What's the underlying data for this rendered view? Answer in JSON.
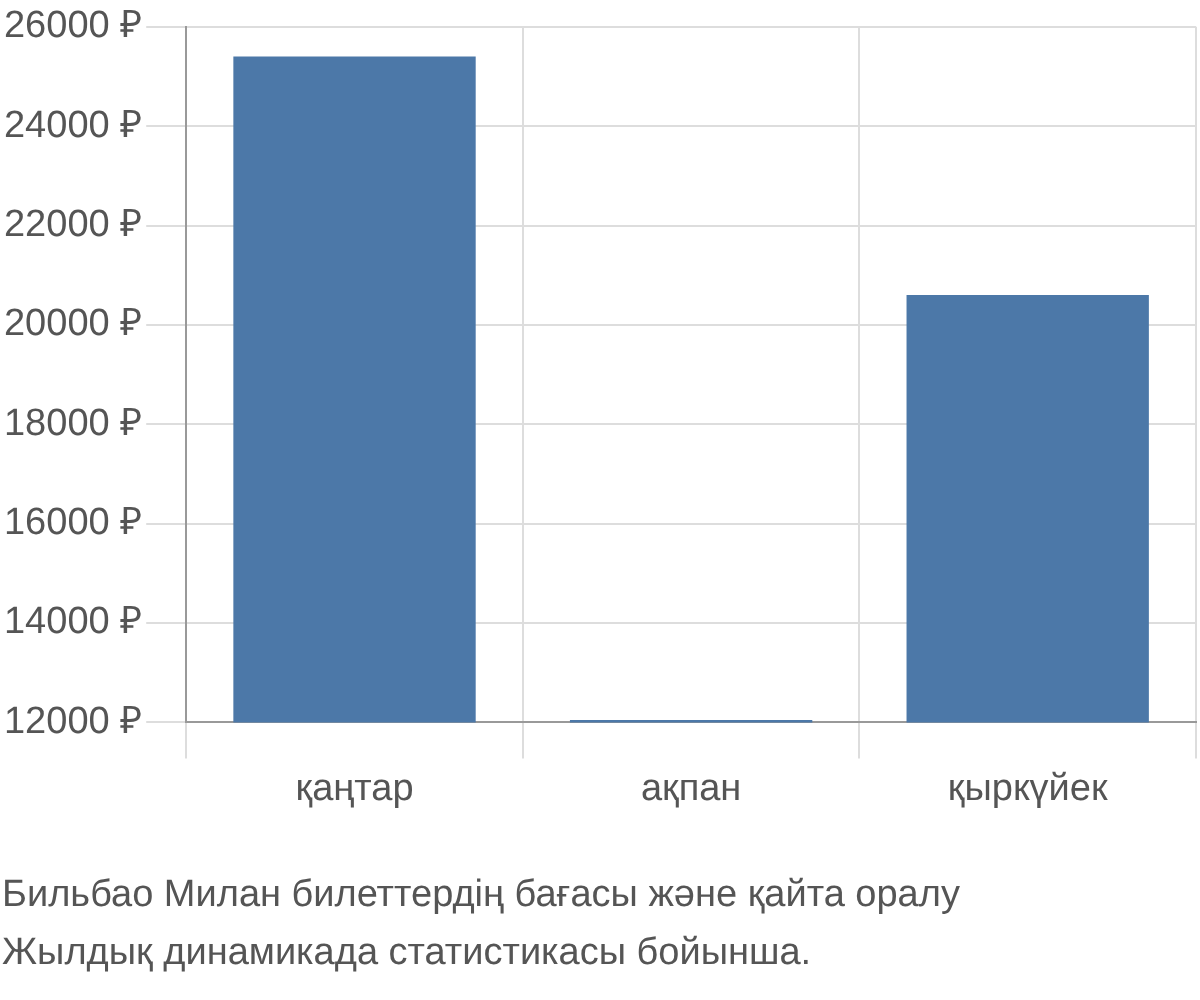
{
  "chart_data": {
    "type": "bar",
    "categories": [
      "қаңтар",
      "ақпан",
      "қыркүйек"
    ],
    "values": [
      25400,
      12050,
      20600
    ],
    "color": "#4c78a8",
    "ylim": [
      12000,
      26000
    ],
    "yticks": [
      {
        "value": 12000,
        "label": "12000 ₽"
      },
      {
        "value": 14000,
        "label": "14000 ₽"
      },
      {
        "value": 16000,
        "label": "16000 ₽"
      },
      {
        "value": 18000,
        "label": "18000 ₽"
      },
      {
        "value": 20000,
        "label": "20000 ₽"
      },
      {
        "value": 22000,
        "label": "22000 ₽"
      },
      {
        "value": 24000,
        "label": "24000 ₽"
      },
      {
        "value": 26000,
        "label": "26000 ₽"
      }
    ],
    "grid": true,
    "annotations": [
      "Бильбао Милан билеттердің бағасы және қайта оралу",
      "Жылдық динамикада статистикасы бойынша."
    ]
  }
}
